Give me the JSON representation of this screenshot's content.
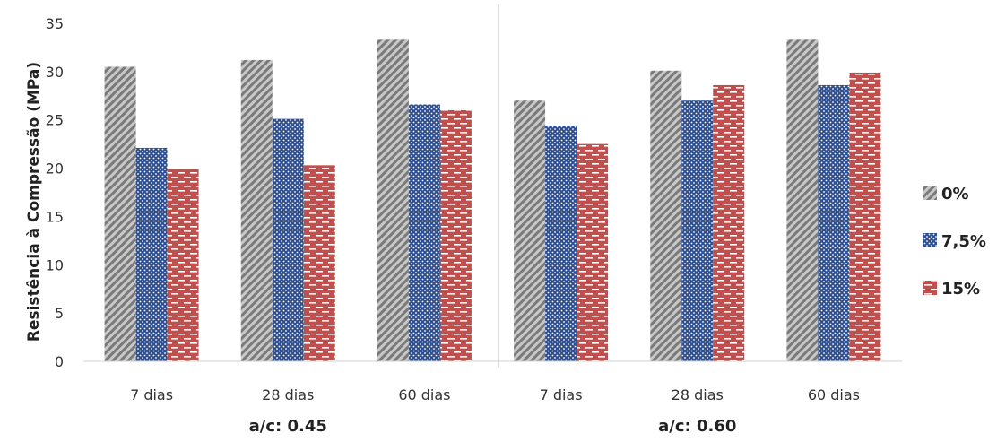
{
  "chart_data": {
    "type": "bar",
    "ylabel": "Resistência à Compressão (MPa)",
    "ylim": [
      0,
      35
    ],
    "yticks": [
      0,
      5,
      10,
      15,
      20,
      25,
      30,
      35
    ],
    "grid": false,
    "legend_position": "right",
    "groups": [
      {
        "label": "a/c: 0.45",
        "categories": [
          "7 dias",
          "28 dias",
          "60 dias"
        ]
      },
      {
        "label": "a/c: 0.60",
        "categories": [
          "7 dias",
          "28 dias",
          "60 dias"
        ]
      }
    ],
    "categories": [
      "7 dias",
      "28 dias",
      "60 dias",
      "7 dias",
      "28 dias",
      "60 dias"
    ],
    "series": [
      {
        "name": "0%",
        "color": "#8c8c8c",
        "pattern": "diagonal-stripes",
        "values": [
          30.5,
          31.2,
          33.3,
          27.0,
          30.1,
          33.3
        ]
      },
      {
        "name": "7,5%",
        "color": "#2f4f8f",
        "pattern": "dots",
        "values": [
          22.1,
          25.1,
          26.6,
          24.4,
          27.0,
          28.6
        ]
      },
      {
        "name": "15%",
        "color": "#c0504d",
        "pattern": "dashes",
        "values": [
          19.9,
          20.3,
          26.0,
          22.5,
          28.6,
          29.9
        ]
      }
    ]
  }
}
